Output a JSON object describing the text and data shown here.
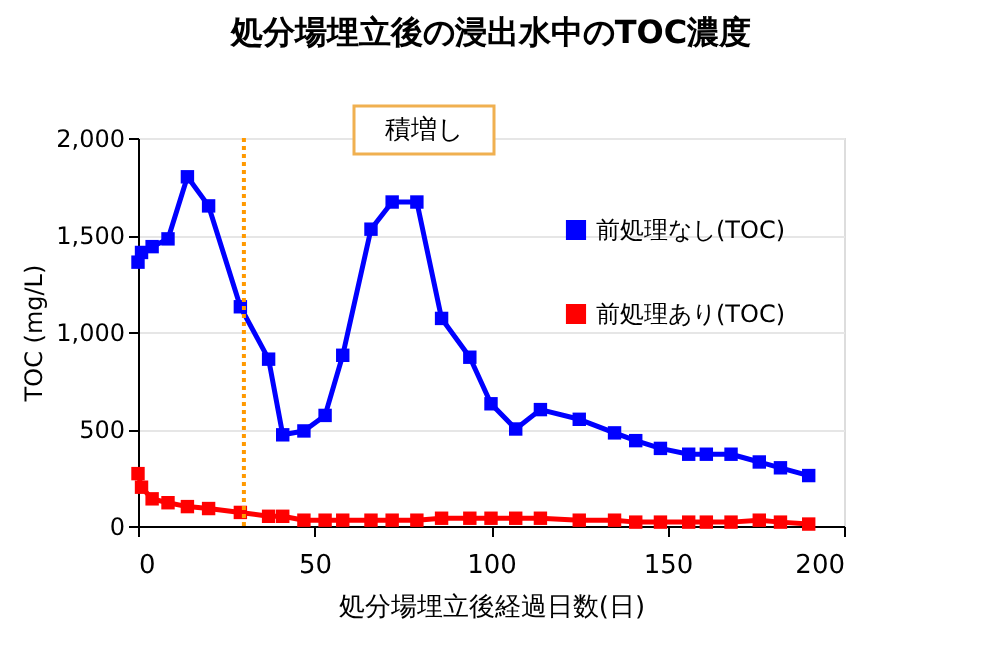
{
  "chart_data": {
    "type": "line",
    "title": "処分場埋立後の浸出水中のTOC濃度",
    "xlabel": "処分場埋立後経過日数(日)",
    "ylabel": "TOC (mg/L)",
    "x": [
      0,
      1,
      4,
      8.5,
      14,
      20,
      29,
      37,
      41,
      47,
      53,
      58,
      66,
      72,
      79,
      86,
      94,
      100,
      107,
      114,
      125,
      135,
      141,
      148,
      156,
      161,
      168,
      176,
      182,
      190
    ],
    "series": [
      {
        "name": "前処理なし(TOC)",
        "color": "#0000ff",
        "values": [
          1360,
          1410,
          1440,
          1480,
          1800,
          1650,
          1130,
          860,
          470,
          490,
          570,
          880,
          1530,
          1670,
          1670,
          1070,
          870,
          630,
          500,
          600,
          550,
          480,
          440,
          400,
          370,
          370,
          370,
          330,
          300,
          260
        ]
      },
      {
        "name": "前処理あり(TOC)",
        "color": "#ff0000",
        "values": [
          270,
          200,
          140,
          120,
          100,
          90,
          70,
          50,
          50,
          30,
          30,
          30,
          30,
          30,
          30,
          40,
          40,
          40,
          40,
          40,
          30,
          30,
          20,
          20,
          20,
          20,
          20,
          30,
          20,
          10
        ]
      }
    ],
    "xlim": [
      0,
      200
    ],
    "xticks": [
      0,
      50,
      100,
      150,
      200
    ],
    "ylim": [
      0,
      2000
    ],
    "yticks": [
      0,
      500,
      {
        "value": 1000,
        "label": "1,000"
      },
      {
        "value": 1500,
        "label": "1,500"
      },
      {
        "value": 2000,
        "label": "2,000"
      }
    ],
    "ref_lines": [
      {
        "axis": "x",
        "value": 30,
        "color": "#ff9900",
        "line_style": "dotted"
      }
    ],
    "annotations": [
      "積増し"
    ],
    "grid": "y",
    "legend": "right",
    "marker": "square",
    "line_style": "solid"
  }
}
